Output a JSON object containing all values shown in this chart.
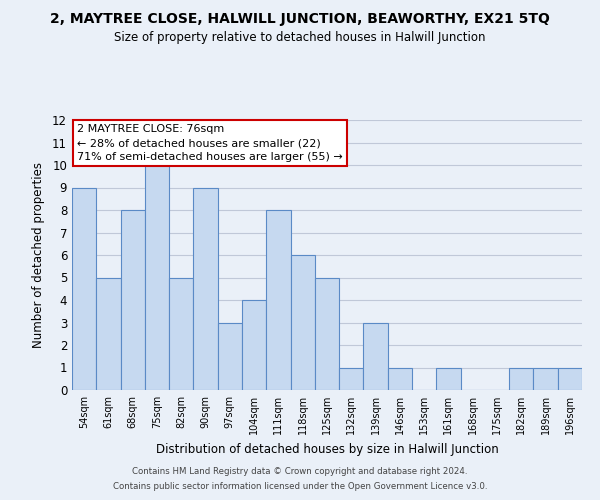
{
  "title": "2, MAYTREE CLOSE, HALWILL JUNCTION, BEAWORTHY, EX21 5TQ",
  "subtitle": "Size of property relative to detached houses in Halwill Junction",
  "xlabel": "Distribution of detached houses by size in Halwill Junction",
  "ylabel": "Number of detached properties",
  "footer_line1": "Contains HM Land Registry data © Crown copyright and database right 2024.",
  "footer_line2": "Contains public sector information licensed under the Open Government Licence v3.0.",
  "bin_labels": [
    "54sqm",
    "61sqm",
    "68sqm",
    "75sqm",
    "82sqm",
    "90sqm",
    "97sqm",
    "104sqm",
    "111sqm",
    "118sqm",
    "125sqm",
    "132sqm",
    "139sqm",
    "146sqm",
    "153sqm",
    "161sqm",
    "168sqm",
    "175sqm",
    "182sqm",
    "189sqm",
    "196sqm"
  ],
  "bar_heights": [
    9,
    5,
    8,
    10,
    5,
    9,
    3,
    4,
    8,
    6,
    5,
    1,
    3,
    1,
    0,
    1,
    0,
    0,
    1,
    1,
    1
  ],
  "bar_color": "#c6d9f0",
  "bar_edge_color": "#5a8ac6",
  "annotation_box_text": "2 MAYTREE CLOSE: 76sqm\n← 28% of detached houses are smaller (22)\n71% of semi-detached houses are larger (55) →",
  "annotation_box_facecolor": "#ffffff",
  "annotation_box_edgecolor": "#cc0000",
  "ylim": [
    0,
    12
  ],
  "grid_color": "#c0c8d8",
  "background_color": "#eaf0f8"
}
